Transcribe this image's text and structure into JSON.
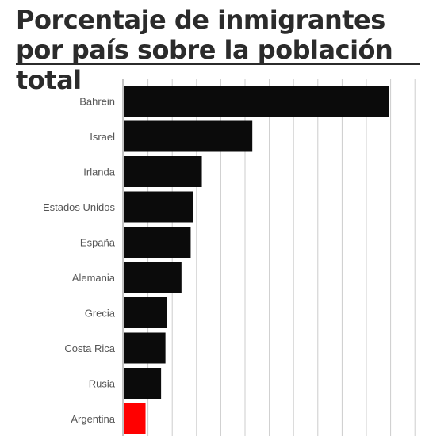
{
  "title": "Porcentaje de inmigrantes por país sobre la población total",
  "colors": {
    "bar": "#0b0b0b",
    "highlight": "#ff0000",
    "grid": "#cccccc",
    "title": "#2b2b2b",
    "label": "#555555"
  },
  "chart_data": {
    "type": "bar",
    "orientation": "horizontal",
    "title": "Porcentaje de inmigrantes por país sobre la población total",
    "xlabel": "",
    "ylabel": "",
    "xlim": [
      0,
      60
    ],
    "grid": true,
    "categories": [
      "Bahrein",
      "Israel",
      "Irlanda",
      "Estados Unidos",
      "España",
      "Alemania",
      "Grecia",
      "Costa Rica",
      "Rusia",
      "Argentina"
    ],
    "values": [
      54.7,
      26.5,
      16.1,
      14.3,
      13.8,
      11.9,
      8.9,
      8.6,
      7.7,
      4.5
    ],
    "highlight": "Argentina"
  }
}
